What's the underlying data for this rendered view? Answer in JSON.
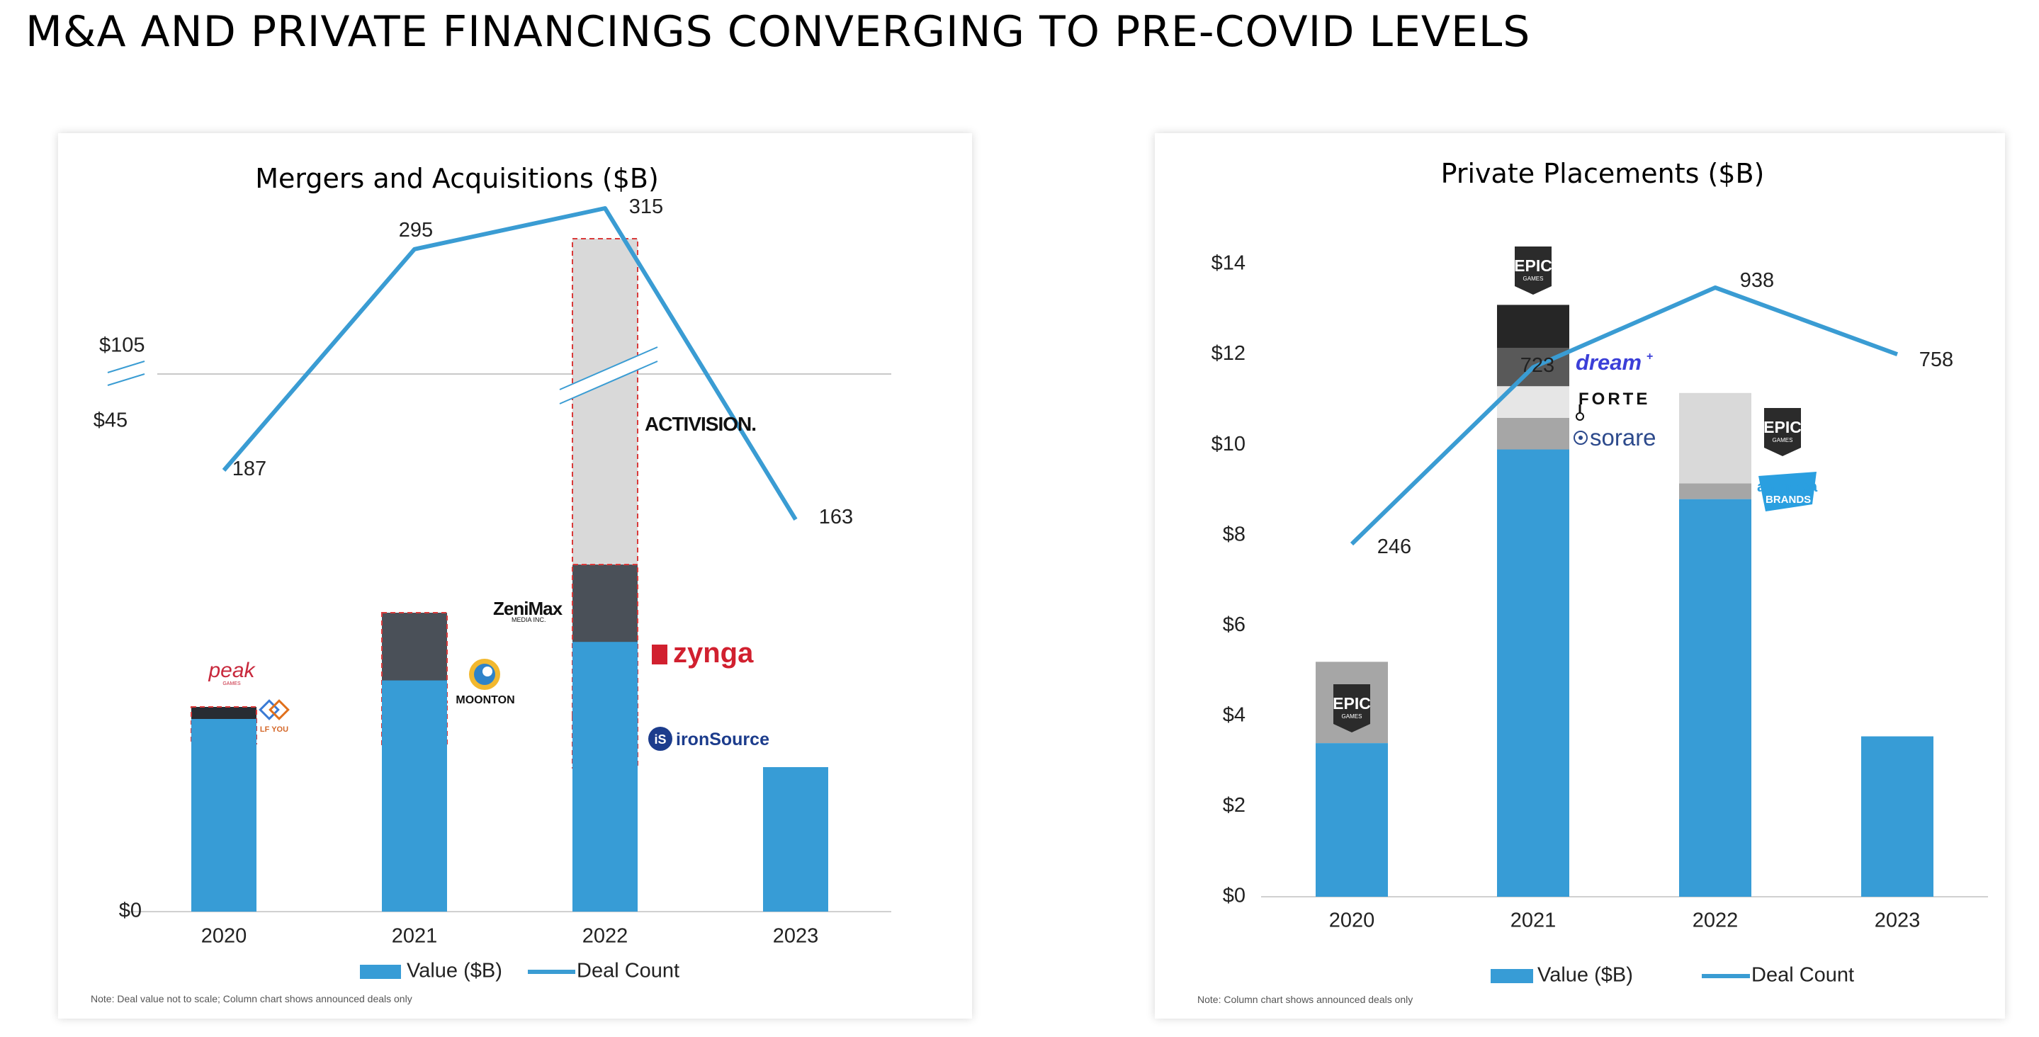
{
  "page": {
    "title": "M&A AND PRIVATE FINANCINGS CONVERGING TO PRE-COVID LEVELS"
  },
  "colors": {
    "value": "#379CD6",
    "line": "#3A9CD3",
    "dark": "#282C33",
    "slate": "#4A5058",
    "light": "#D9D9D9",
    "mid": "#A6A6A6",
    "black": "#262626",
    "charcoal": "#595959",
    "pale": "#E6E6E6"
  },
  "chart_data": [
    {
      "type": "bar",
      "title": "Mergers and Acquisitions ($B)",
      "categories": [
        "2020",
        "2021",
        "2022",
        "2023"
      ],
      "y_tick_labels": [
        "$0",
        "$45",
        "$105"
      ],
      "axis_break": true,
      "series": [
        {
          "name": "Value ($B)",
          "values": [
            20,
            24,
            28,
            15
          ]
        },
        {
          "name": "Deal Count",
          "type": "line",
          "values": [
            187,
            295,
            315,
            163
          ]
        }
      ],
      "stacks": {
        "2020": [
          {
            "deal": "Peak Games",
            "logo_text": "peak",
            "logo_sub": "GAMES"
          },
          {
            "deal": "LF YOU",
            "logo_text": "LF YOU"
          }
        ],
        "2021": [
          {
            "deal": "ZeniMax Media",
            "logo_text": "ZeniMax",
            "logo_sub": "MEDIA INC."
          },
          {
            "deal": "Moonton",
            "logo_text": "MOONTON"
          }
        ],
        "2022": [
          {
            "deal": "Activision",
            "logo_text": "ACTIVISION."
          },
          {
            "deal": "Zynga",
            "logo_text": "zynga"
          },
          {
            "deal": "ironSource",
            "logo_text": "ironSource",
            "logo_icon": "iS"
          }
        ]
      },
      "legend": {
        "items": [
          "Value ($B)",
          "Deal Count"
        ],
        "position": "bottom"
      },
      "note": "Note: Deal value not to scale; Column chart shows announced deals only"
    },
    {
      "type": "bar",
      "title": "Private Placements ($B)",
      "categories": [
        "2020",
        "2021",
        "2022",
        "2023"
      ],
      "ylim": [
        0,
        14
      ],
      "y_ticks": [
        0,
        2,
        4,
        6,
        8,
        10,
        12,
        14
      ],
      "y_tick_labels": [
        "$0",
        "$2",
        "$4",
        "$6",
        "$8",
        "$10",
        "$12",
        "$14"
      ],
      "series": [
        {
          "name": "Value ($B)",
          "values": [
            3.4,
            9.9,
            8.8,
            3.55
          ]
        },
        {
          "name": "Deal Count",
          "type": "line",
          "values": [
            246,
            723,
            938,
            758
          ]
        }
      ],
      "stack_totals": [
        5.2,
        13.1,
        11.15,
        3.55
      ],
      "stacks": {
        "2020": [
          {
            "deal": "Epic Games",
            "logo_text": "EPIC",
            "logo_sub": "GAMES"
          }
        ],
        "2021": [
          {
            "deal": "Epic Games",
            "logo_text": "EPIC",
            "logo_sub": "GAMES"
          },
          {
            "deal": "Dream Games",
            "logo_text": "dream"
          },
          {
            "deal": "Forte",
            "logo_text": "FORTE"
          },
          {
            "deal": "Sorare",
            "logo_text": "sorare"
          }
        ],
        "2022": [
          {
            "deal": "Epic Games",
            "logo_text": "EPIC",
            "logo_sub": "GAMES"
          },
          {
            "deal": "Animoca Brands",
            "logo_text": "animoca",
            "logo_sub": "BRANDS"
          }
        ]
      },
      "legend": {
        "items": [
          "Value ($B)",
          "Deal Count"
        ],
        "position": "bottom"
      },
      "note": "Note: Column chart shows announced deals only"
    }
  ]
}
